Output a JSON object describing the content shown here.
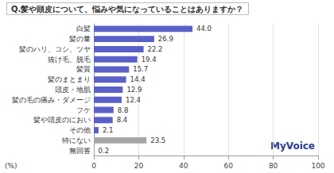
{
  "chart_data": {
    "type": "bar",
    "orientation": "horizontal",
    "title": "Q.髪や頭皮について、悩みや気になっていることはありますか？",
    "xlabel": "(%)",
    "annotation": "MyVoice",
    "categories": [
      "白髪",
      "髪の量",
      "髪のハリ、コシ、ツヤ",
      "抜け毛、脱毛",
      "髪質",
      "髪のまとまり",
      "頭皮・地肌",
      "髪の毛の痛み・ダメージ",
      "フケ",
      "髪や頭皮のにおい",
      "その他",
      "特にない",
      "無回答"
    ],
    "values": [
      44.0,
      26.9,
      22.2,
      19.4,
      15.7,
      14.4,
      12.9,
      12.4,
      8.8,
      8.4,
      2.1,
      23.5,
      0.2
    ],
    "value_labels": [
      "44.0",
      "26.9",
      "22.2",
      "19.4",
      "15.7",
      "14.4",
      "12.9",
      "12.4",
      "8.8",
      "8.4",
      "2.1",
      "23.5",
      "0.2"
    ],
    "colors": [
      "#5b60c9",
      "#5b60c9",
      "#5b60c9",
      "#5b60c9",
      "#5b60c9",
      "#5b60c9",
      "#5b60c9",
      "#5b60c9",
      "#5b60c9",
      "#5b60c9",
      "#5b60c9",
      "#a6a6a6",
      "#a6a6a6"
    ],
    "xlim": [
      0,
      100
    ],
    "xticks": [
      0,
      20,
      40,
      60,
      80,
      100
    ],
    "grid": true,
    "data_labels": true
  }
}
